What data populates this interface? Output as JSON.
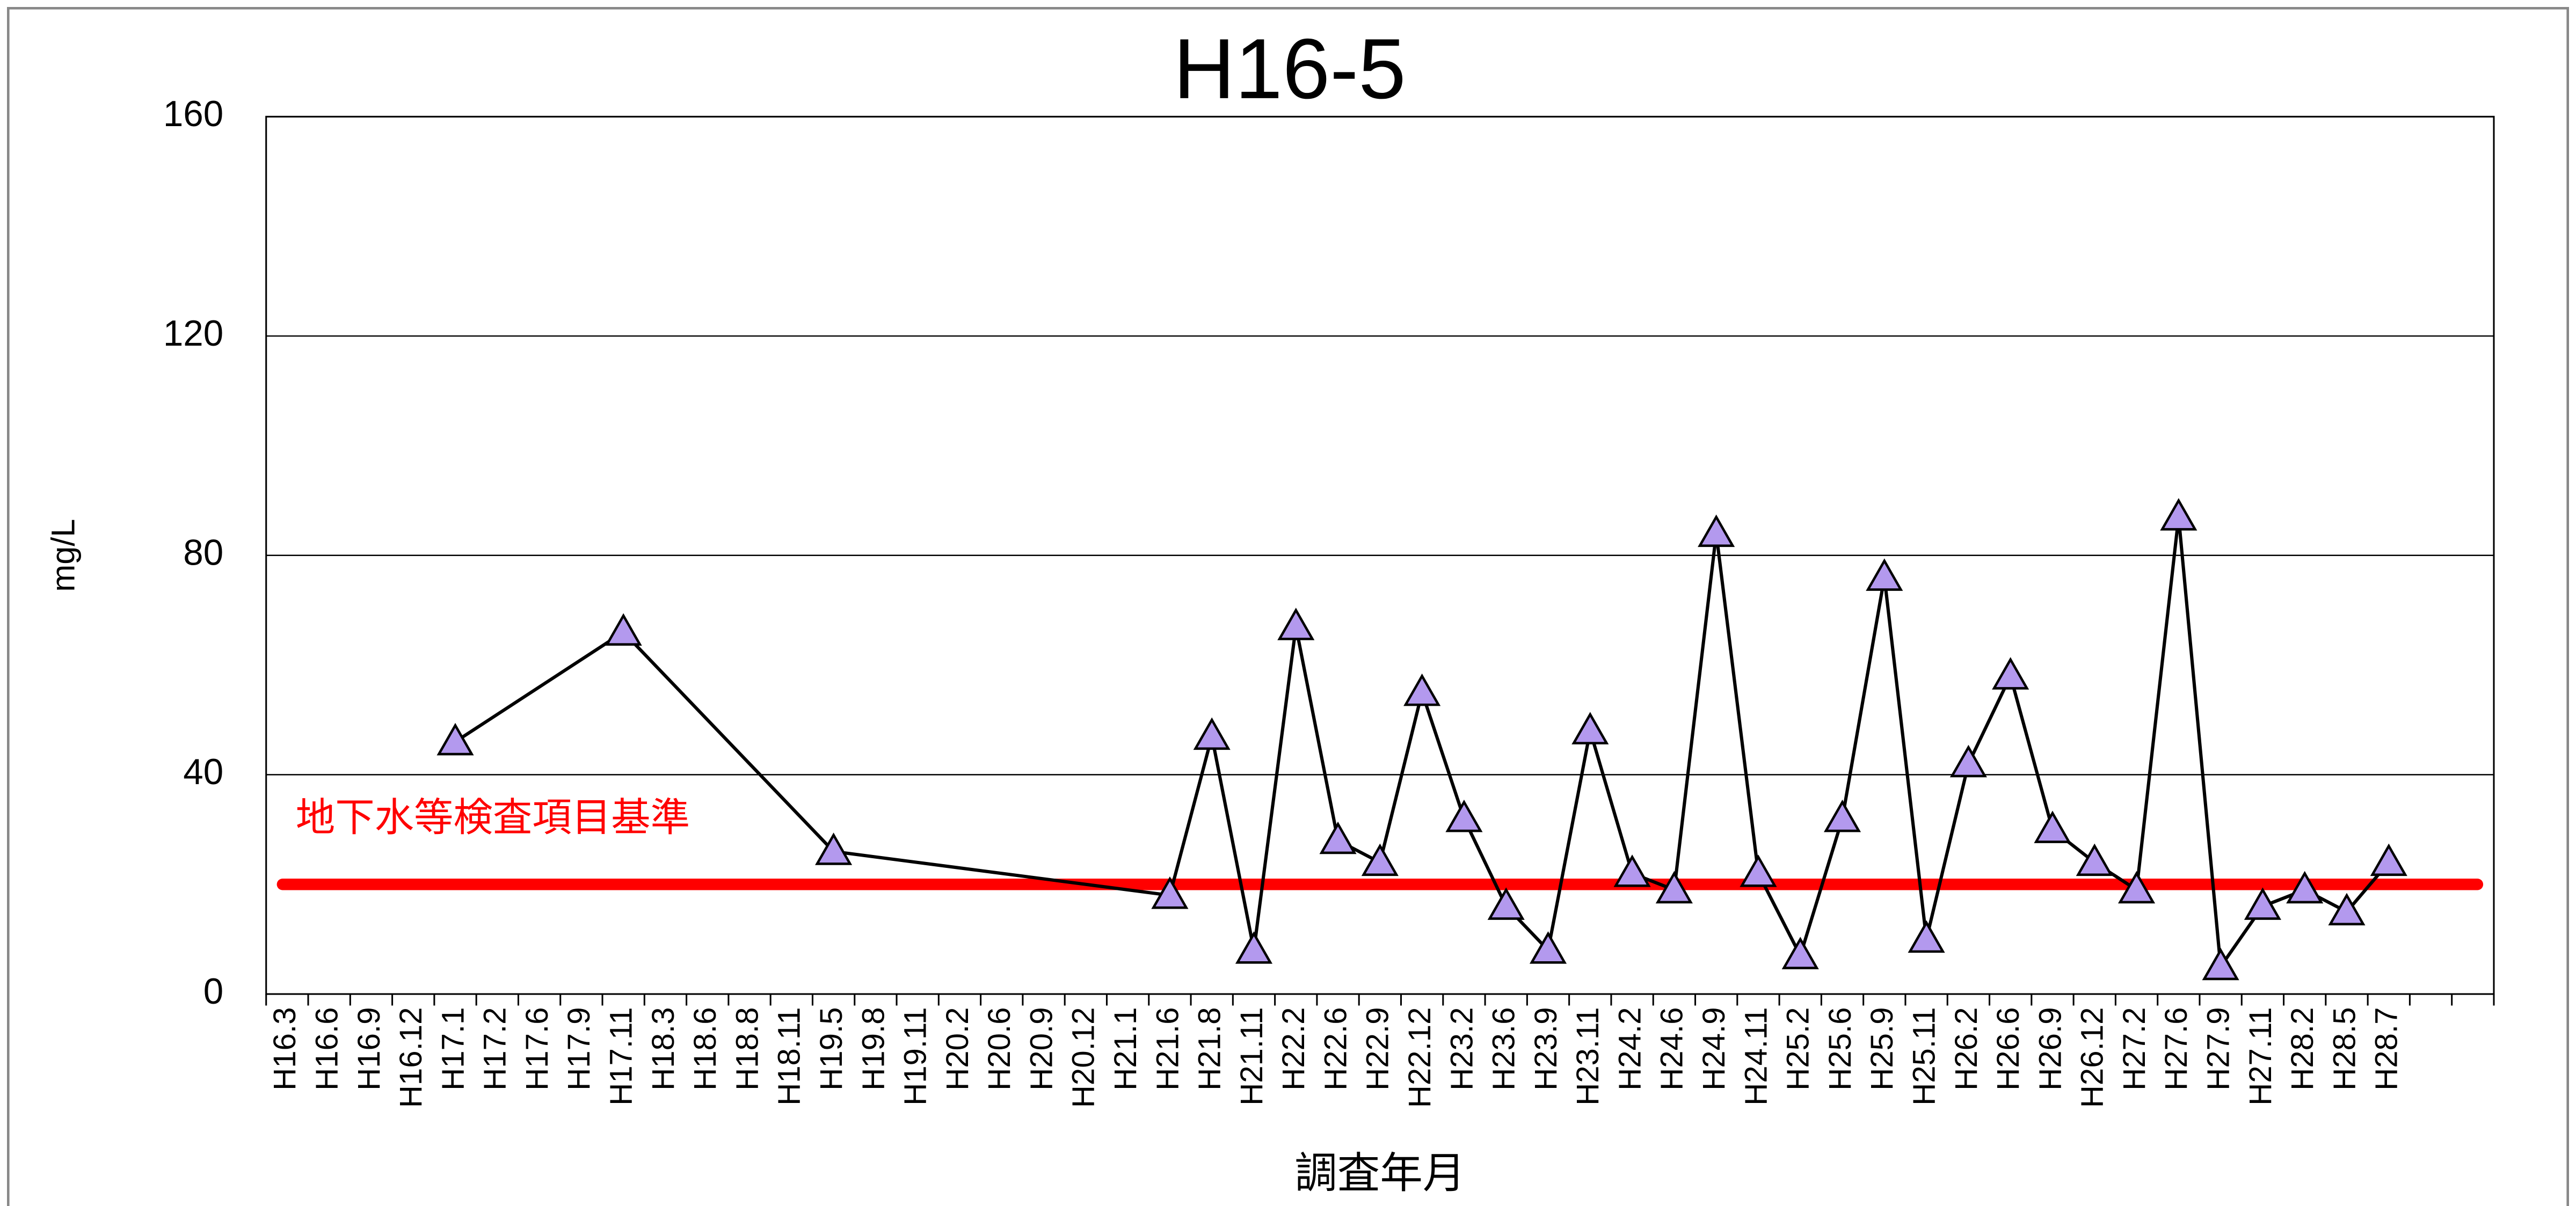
{
  "chart_data": {
    "type": "line",
    "title": "H16-5",
    "y_label": "mg/L",
    "x_label": "調査年月",
    "categories": [
      "H16.3",
      "H16.6",
      "H16.9",
      "H16.12",
      "H17.1",
      "H17.2",
      "H17.6",
      "H17.9",
      "H17.11",
      "H18.3",
      "H18.6",
      "H18.8",
      "H18.11",
      "H19.5",
      "H19.8",
      "H19.11",
      "H20.2",
      "H20.6",
      "H20.9",
      "H20.12",
      "H21.1",
      "H21.6",
      "H21.8",
      "H21.11",
      "H22.2",
      "H22.6",
      "H22.9",
      "H22.12",
      "H23.2",
      "H23.6",
      "H23.9",
      "H23.11",
      "H24.2",
      "H24.6",
      "H24.9",
      "H24.11",
      "H25.2",
      "H25.6",
      "H25.9",
      "H25.11",
      "H26.2",
      "H26.6",
      "H26.9",
      "H26.12",
      "H27.2",
      "H27.6",
      "H27.9",
      "H27.11",
      "H28.2",
      "H28.5",
      "H28.7",
      null,
      null
    ],
    "series": [
      {
        "color": "#b399ee",
        "line_color": "#000000",
        "values": [
          null,
          null,
          null,
          null,
          46,
          null,
          null,
          null,
          66,
          null,
          null,
          null,
          null,
          26,
          null,
          null,
          null,
          null,
          null,
          null,
          null,
          18,
          47,
          8,
          67,
          28,
          24,
          55,
          32,
          16,
          8,
          48,
          22,
          19,
          84,
          22,
          7,
          32,
          76,
          10,
          42,
          58,
          30,
          24,
          19,
          87,
          5,
          16,
          19,
          15,
          24,
          null,
          null
        ]
      }
    ],
    "connect_gaps": true,
    "reference_lines": [
      {
        "value": 20,
        "label": "地下水等検査項目基準",
        "color": "#ff0000"
      }
    ],
    "ylim": [
      0,
      160
    ],
    "yticks": [
      0,
      40,
      80,
      120,
      160
    ],
    "grid": true
  }
}
